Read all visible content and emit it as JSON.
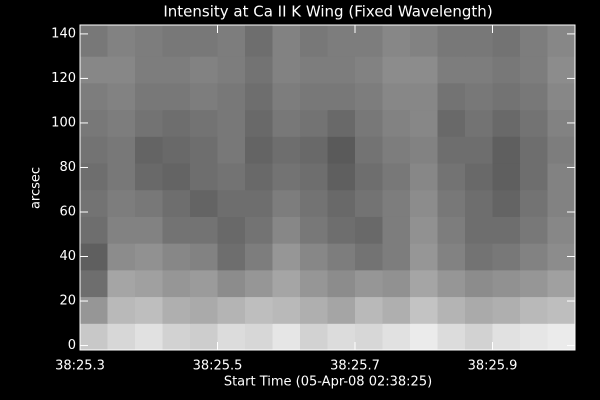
{
  "chart_data": {
    "type": "heatmap",
    "title": "Intensity at Ca II K Wing (Fixed Wavelength)",
    "xlabel": "Start Time (05-Apr-08 02:38:25)",
    "ylabel": "arcsec",
    "colormap": "gray",
    "zlim": [
      0,
      255
    ],
    "xlim": [
      25.3,
      26.02
    ],
    "ylim": [
      -2,
      144
    ],
    "xticks": [
      {
        "value": 25.3,
        "label": "38:25.3"
      },
      {
        "value": 25.5,
        "label": "38:25.5"
      },
      {
        "value": 25.7,
        "label": "38:25.7"
      },
      {
        "value": 25.9,
        "label": "38:25.9"
      }
    ],
    "yticks": [
      0,
      20,
      40,
      60,
      80,
      100,
      120,
      140
    ],
    "x": [
      25.32,
      25.36,
      25.4,
      25.44,
      25.48,
      25.52,
      25.56,
      25.6,
      25.64,
      25.68,
      25.72,
      25.76,
      25.8,
      25.84,
      25.88,
      25.92,
      25.96,
      26.0
    ],
    "y": [
      4,
      16,
      28,
      40,
      52,
      64,
      76,
      88,
      100,
      112,
      124,
      136
    ],
    "z": [
      [
        200,
        215,
        225,
        210,
        205,
        220,
        215,
        230,
        210,
        220,
        215,
        225,
        235,
        220,
        210,
        225,
        230,
        235
      ],
      [
        150,
        185,
        190,
        175,
        170,
        180,
        190,
        185,
        175,
        165,
        185,
        175,
        195,
        180,
        170,
        175,
        185,
        190
      ],
      [
        110,
        165,
        160,
        150,
        155,
        140,
        150,
        165,
        150,
        140,
        150,
        145,
        165,
        150,
        140,
        145,
        150,
        160
      ],
      [
        95,
        140,
        145,
        135,
        130,
        110,
        125,
        150,
        135,
        125,
        115,
        125,
        150,
        130,
        115,
        120,
        130,
        140
      ],
      [
        110,
        130,
        130,
        115,
        115,
        105,
        115,
        135,
        120,
        110,
        105,
        125,
        145,
        125,
        110,
        110,
        120,
        135
      ],
      [
        115,
        125,
        120,
        110,
        100,
        110,
        110,
        125,
        115,
        105,
        115,
        125,
        140,
        120,
        110,
        100,
        115,
        130
      ],
      [
        110,
        120,
        105,
        100,
        110,
        115,
        105,
        115,
        110,
        95,
        110,
        120,
        135,
        115,
        105,
        95,
        110,
        130
      ],
      [
        115,
        120,
        100,
        105,
        110,
        120,
        100,
        110,
        105,
        90,
        115,
        125,
        130,
        110,
        110,
        95,
        110,
        125
      ],
      [
        120,
        125,
        115,
        110,
        115,
        120,
        105,
        120,
        115,
        105,
        120,
        130,
        135,
        105,
        115,
        105,
        115,
        130
      ],
      [
        125,
        130,
        120,
        120,
        125,
        120,
        110,
        125,
        120,
        120,
        125,
        135,
        135,
        115,
        120,
        115,
        120,
        135
      ],
      [
        135,
        135,
        125,
        125,
        130,
        125,
        115,
        130,
        125,
        125,
        130,
        140,
        140,
        125,
        125,
        120,
        125,
        140
      ],
      [
        120,
        130,
        125,
        120,
        120,
        125,
        110,
        130,
        120,
        125,
        125,
        135,
        130,
        120,
        120,
        115,
        125,
        135
      ]
    ]
  }
}
